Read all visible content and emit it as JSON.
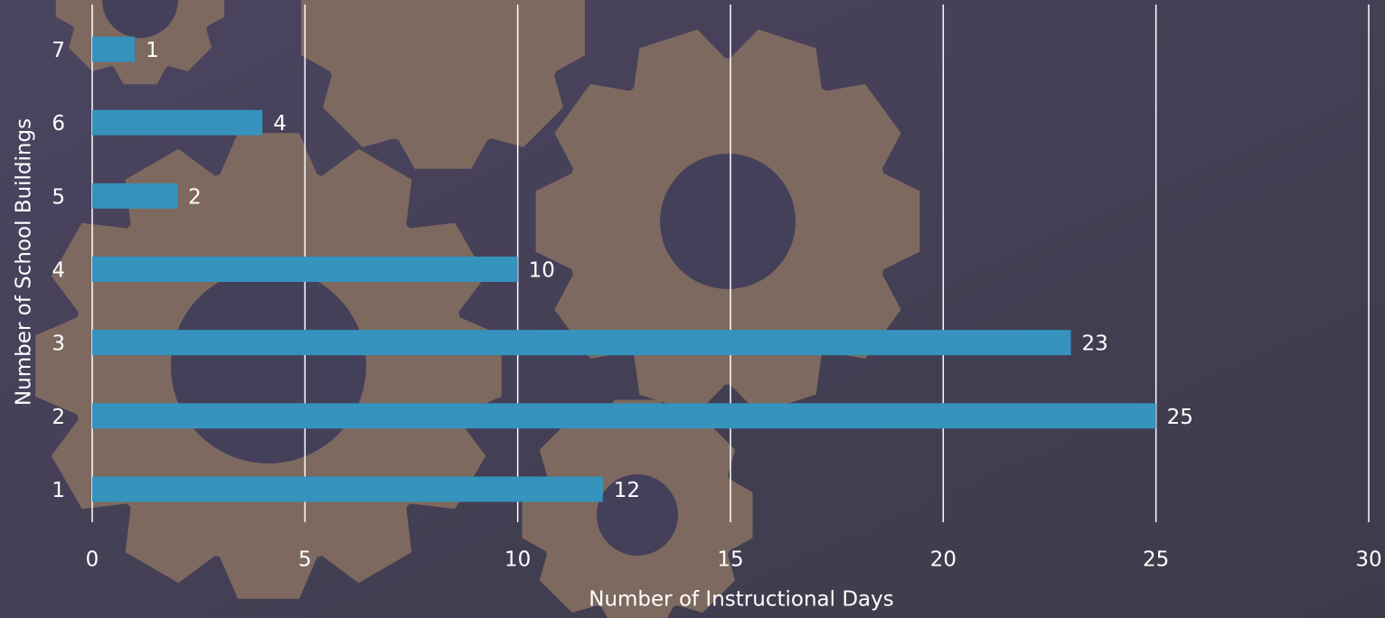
{
  "chart_data": {
    "type": "bar",
    "orientation": "horizontal",
    "x_label": "Number of Instructional Days",
    "y_label": "Number of School Buildings",
    "categories": [
      "1",
      "2",
      "3",
      "4",
      "5",
      "6",
      "7"
    ],
    "values": [
      12,
      25,
      23,
      10,
      2,
      4,
      1
    ],
    "color": "#3593be",
    "xlim": [
      0,
      30
    ],
    "xticks": [
      0,
      5,
      10,
      15,
      20,
      25,
      30
    ],
    "grid": true
  }
}
